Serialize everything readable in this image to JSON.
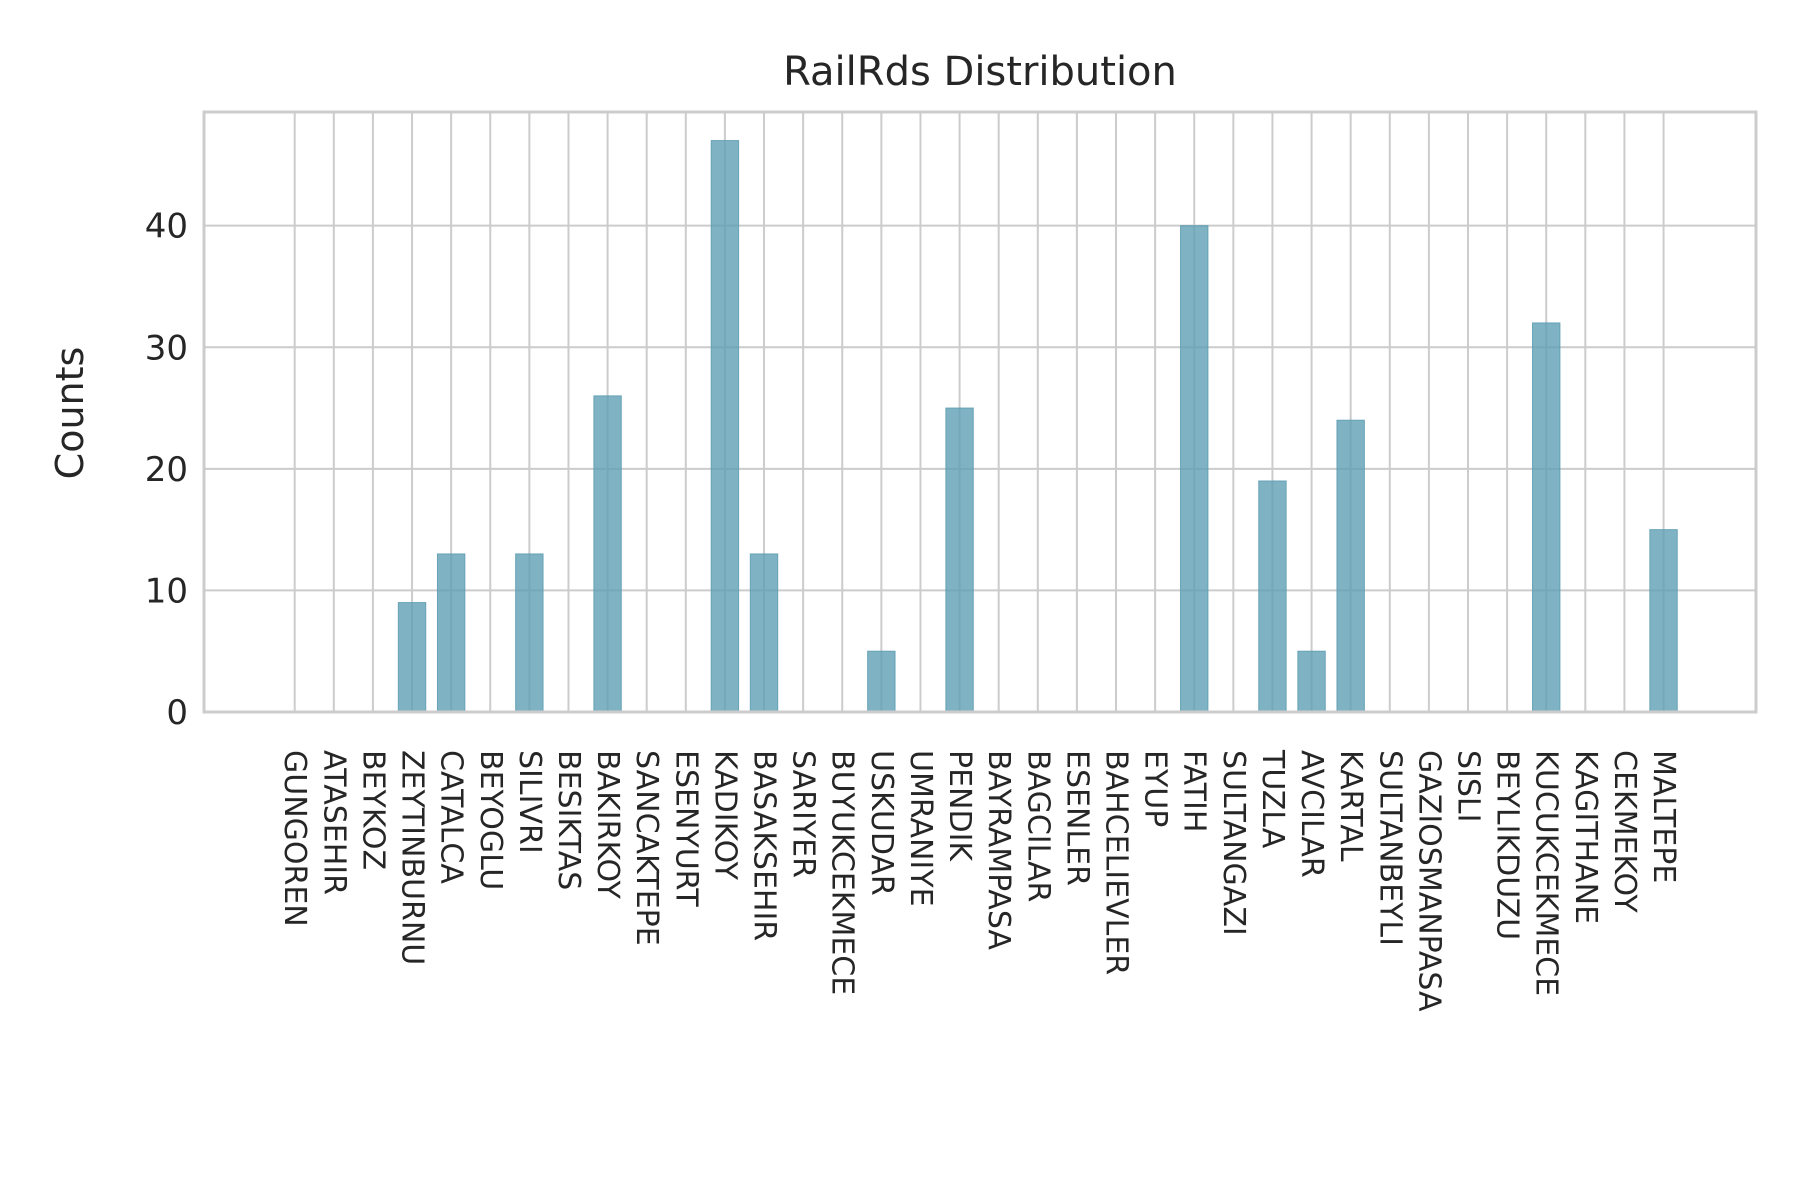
{
  "chart_data": {
    "type": "bar",
    "title": "RailRds Distribution",
    "xlabel": "",
    "ylabel": "Counts",
    "ylim": [
      0,
      49.35
    ],
    "yticks": [
      0,
      10,
      20,
      30,
      40
    ],
    "grid": true,
    "bar_color": "#5f9fb4",
    "categories": [
      "GUNGOREN",
      "ATASEHIR",
      "BEYKOZ",
      "ZEYTINBURNU",
      "CATALCA",
      "BEYOGLU",
      "SILIVRI",
      "BESIKTAS",
      "BAKIRKOY",
      "SANCAKTEPE",
      "ESENYURT",
      "KADIKOY",
      "BASAKSEHIR",
      "SARIYER",
      "BUYUKCEKMECE",
      "USKUDAR",
      "UMRANIYE",
      "PENDIK",
      "BAYRAMPASA",
      "BAGCILAR",
      "ESENLER",
      "BAHCELIEVLER",
      "EYUP",
      "FATIH",
      "SULTANGAZI",
      "TUZLA",
      "AVCILAR",
      "KARTAL",
      "SULTANBEYLI",
      "GAZIOSMANPASA",
      "SISLI",
      "BEYLIKDUZU",
      "KUCUKCEKMECE",
      "KAGITHANE",
      "CEKMEKOY",
      "MALTEPE"
    ],
    "values": [
      0,
      0,
      0,
      9,
      13,
      0,
      13,
      0,
      26,
      0,
      0,
      47,
      13,
      0,
      0,
      5,
      0,
      25,
      0,
      0,
      0,
      0,
      0,
      40,
      0,
      19,
      5,
      24,
      0,
      0,
      0,
      0,
      32,
      0,
      0,
      15
    ]
  }
}
